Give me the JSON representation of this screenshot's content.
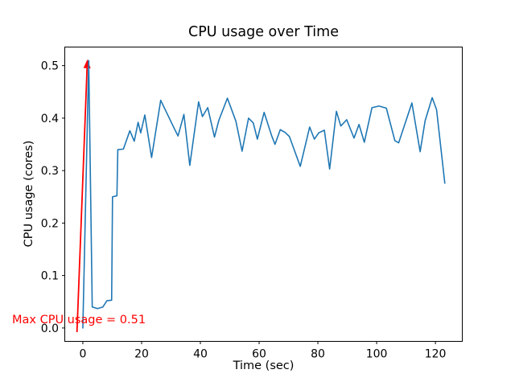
{
  "figure": {
    "background": "#ffffff"
  },
  "chart_data": {
    "type": "line",
    "title": "CPU usage over Time",
    "xlabel": "Time (sec)",
    "ylabel": "CPU usage (cores)",
    "xlim": [
      -6.15,
      129.15
    ],
    "ylim": [
      -0.0255,
      0.5355
    ],
    "x_ticks": [
      0,
      20,
      40,
      60,
      80,
      100,
      120
    ],
    "x_tick_labels": [
      "0",
      "20",
      "40",
      "60",
      "80",
      "100",
      "120"
    ],
    "y_ticks": [
      0.0,
      0.1,
      0.2,
      0.3,
      0.4,
      0.5
    ],
    "y_tick_labels": [
      "0.0",
      "0.1",
      "0.2",
      "0.3",
      "0.4",
      "0.5"
    ],
    "grid": false,
    "legend": "none",
    "series": [
      {
        "name": "CPU usage",
        "color": "#1f77b4",
        "points": [
          [
            0,
            0.0
          ],
          [
            2,
            0.51
          ],
          [
            3.2,
            0.04
          ],
          [
            5,
            0.037
          ],
          [
            6.8,
            0.04
          ],
          [
            8.2,
            0.052
          ],
          [
            9.8,
            0.053
          ],
          [
            10.1,
            0.25
          ],
          [
            11.6,
            0.252
          ],
          [
            11.9,
            0.34
          ],
          [
            13.8,
            0.341
          ],
          [
            16,
            0.376
          ],
          [
            17.5,
            0.356
          ],
          [
            18.8,
            0.392
          ],
          [
            19.7,
            0.372
          ],
          [
            21.1,
            0.406
          ],
          [
            23.4,
            0.325
          ],
          [
            26.5,
            0.434
          ],
          [
            31.4,
            0.377
          ],
          [
            32.4,
            0.366
          ],
          [
            34.4,
            0.407
          ],
          [
            36.4,
            0.31
          ],
          [
            39.4,
            0.431
          ],
          [
            40.7,
            0.403
          ],
          [
            42.5,
            0.42
          ],
          [
            44.8,
            0.364
          ],
          [
            46.3,
            0.396
          ],
          [
            49.2,
            0.438
          ],
          [
            52.1,
            0.394
          ],
          [
            54.2,
            0.337
          ],
          [
            56.4,
            0.4
          ],
          [
            58,
            0.391
          ],
          [
            59.4,
            0.36
          ],
          [
            61.7,
            0.411
          ],
          [
            64.3,
            0.366
          ],
          [
            65.4,
            0.35
          ],
          [
            67.2,
            0.378
          ],
          [
            68.8,
            0.373
          ],
          [
            70.3,
            0.365
          ],
          [
            74,
            0.308
          ],
          [
            77.2,
            0.383
          ],
          [
            78.8,
            0.36
          ],
          [
            80.3,
            0.372
          ],
          [
            82.2,
            0.377
          ],
          [
            84,
            0.303
          ],
          [
            86.3,
            0.413
          ],
          [
            87.8,
            0.385
          ],
          [
            89.8,
            0.397
          ],
          [
            92.3,
            0.362
          ],
          [
            94,
            0.388
          ],
          [
            95.8,
            0.354
          ],
          [
            98.4,
            0.42
          ],
          [
            100.8,
            0.423
          ],
          [
            103.3,
            0.419
          ],
          [
            106.2,
            0.357
          ],
          [
            107.5,
            0.353
          ],
          [
            112,
            0.429
          ],
          [
            114.8,
            0.336
          ],
          [
            116.5,
            0.395
          ],
          [
            118.9,
            0.439
          ],
          [
            120.4,
            0.416
          ],
          [
            123.2,
            0.276
          ]
        ]
      }
    ],
    "annotation": {
      "text": "Max CPU usage = 0.51",
      "color": "#ff0000",
      "arrow_tip": [
        1.55,
        0.512
      ],
      "arrow_tail": [
        -2.0,
        -0.008
      ]
    },
    "axes_color": "#000000"
  }
}
